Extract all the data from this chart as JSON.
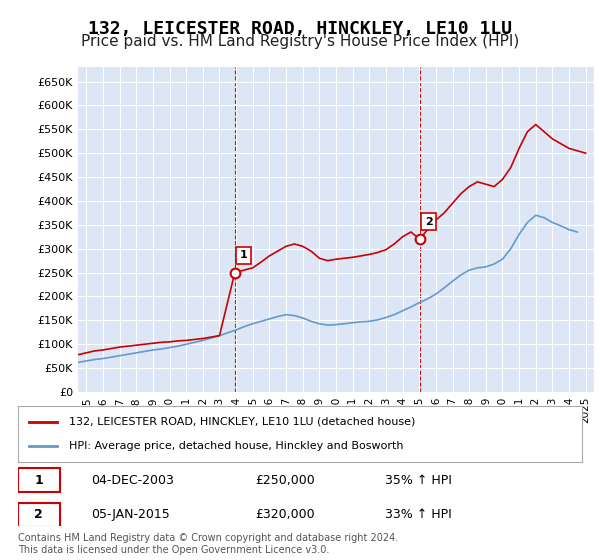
{
  "title": "132, LEICESTER ROAD, HINCKLEY, LE10 1LU",
  "subtitle": "Price paid vs. HM Land Registry's House Price Index (HPI)",
  "title_fontsize": 13,
  "subtitle_fontsize": 11,
  "background_color": "#ffffff",
  "plot_bg_color": "#dce6f5",
  "grid_color": "#ffffff",
  "red_line_color": "#cc0000",
  "blue_line_color": "#6699cc",
  "marker1_x": 2003.92,
  "marker1_y": 250000,
  "marker2_x": 2015.03,
  "marker2_y": 320000,
  "ylim": [
    0,
    680000
  ],
  "xlim": [
    1994.5,
    2025.5
  ],
  "yticks": [
    0,
    50000,
    100000,
    150000,
    200000,
    250000,
    300000,
    350000,
    400000,
    450000,
    500000,
    550000,
    600000,
    650000
  ],
  "ytick_labels": [
    "£0",
    "£50K",
    "£100K",
    "£150K",
    "£200K",
    "£250K",
    "£300K",
    "£350K",
    "£400K",
    "£450K",
    "£500K",
    "£550K",
    "£600K",
    "£650K"
  ],
  "xtick_years": [
    1995,
    1996,
    1997,
    1998,
    1999,
    2000,
    2001,
    2002,
    2003,
    2004,
    2005,
    2006,
    2007,
    2008,
    2009,
    2010,
    2011,
    2012,
    2013,
    2014,
    2015,
    2016,
    2017,
    2018,
    2019,
    2020,
    2021,
    2022,
    2023,
    2024,
    2025
  ],
  "legend_line1": "132, LEICESTER ROAD, HINCKLEY, LE10 1LU (detached house)",
  "legend_line2": "HPI: Average price, detached house, Hinckley and Bosworth",
  "table_rows": [
    {
      "num": "1",
      "date": "04-DEC-2003",
      "price": "£250,000",
      "change": "35% ↑ HPI"
    },
    {
      "num": "2",
      "date": "05-JAN-2015",
      "price": "£320,000",
      "change": "33% ↑ HPI"
    }
  ],
  "footnote": "Contains HM Land Registry data © Crown copyright and database right 2024.\nThis data is licensed under the Open Government Licence v3.0.",
  "red_x": [
    1994.5,
    1995.0,
    1995.5,
    1996.0,
    1996.5,
    1997.0,
    1997.5,
    1998.0,
    1998.5,
    1999.0,
    1999.5,
    2000.0,
    2000.5,
    2001.0,
    2001.5,
    2002.0,
    2002.5,
    2003.0,
    2003.92,
    2005.0,
    2005.5,
    2006.0,
    2006.5,
    2007.0,
    2007.5,
    2008.0,
    2008.5,
    2009.0,
    2009.5,
    2010.0,
    2010.5,
    2011.0,
    2011.5,
    2012.0,
    2012.5,
    2013.0,
    2013.5,
    2014.0,
    2014.5,
    2015.03,
    2015.5,
    2016.0,
    2016.5,
    2017.0,
    2017.5,
    2018.0,
    2018.5,
    2019.0,
    2019.5,
    2020.0,
    2020.5,
    2021.0,
    2021.5,
    2022.0,
    2022.5,
    2023.0,
    2023.5,
    2024.0,
    2024.5,
    2025.0
  ],
  "red_y": [
    78000,
    82000,
    86000,
    88000,
    91000,
    94000,
    96000,
    98000,
    100000,
    102000,
    104000,
    105000,
    107000,
    108000,
    110000,
    112000,
    115000,
    118000,
    250000,
    260000,
    272000,
    285000,
    295000,
    305000,
    310000,
    305000,
    295000,
    280000,
    275000,
    278000,
    280000,
    282000,
    285000,
    288000,
    292000,
    298000,
    310000,
    325000,
    335000,
    320000,
    340000,
    360000,
    375000,
    395000,
    415000,
    430000,
    440000,
    435000,
    430000,
    445000,
    470000,
    510000,
    545000,
    560000,
    545000,
    530000,
    520000,
    510000,
    505000,
    500000
  ],
  "blue_x": [
    1994.5,
    1995.0,
    1995.5,
    1996.0,
    1996.5,
    1997.0,
    1997.5,
    1998.0,
    1998.5,
    1999.0,
    1999.5,
    2000.0,
    2000.5,
    2001.0,
    2001.5,
    2002.0,
    2002.5,
    2003.0,
    2003.5,
    2004.0,
    2004.5,
    2005.0,
    2005.5,
    2006.0,
    2006.5,
    2007.0,
    2007.5,
    2008.0,
    2008.5,
    2009.0,
    2009.5,
    2010.0,
    2010.5,
    2011.0,
    2011.5,
    2012.0,
    2012.5,
    2013.0,
    2013.5,
    2014.0,
    2014.5,
    2015.0,
    2015.5,
    2016.0,
    2016.5,
    2017.0,
    2017.5,
    2018.0,
    2018.5,
    2019.0,
    2019.5,
    2020.0,
    2020.5,
    2021.0,
    2021.5,
    2022.0,
    2022.5,
    2023.0,
    2023.5,
    2024.0,
    2024.5
  ],
  "blue_y": [
    62000,
    65000,
    68000,
    70000,
    73000,
    76000,
    79000,
    82000,
    85000,
    88000,
    90000,
    93000,
    96000,
    100000,
    104000,
    108000,
    113000,
    118000,
    124000,
    130000,
    137000,
    143000,
    148000,
    153000,
    158000,
    162000,
    160000,
    155000,
    148000,
    143000,
    140000,
    141000,
    143000,
    145000,
    147000,
    148000,
    151000,
    156000,
    162000,
    170000,
    178000,
    187000,
    195000,
    205000,
    218000,
    232000,
    245000,
    255000,
    260000,
    262000,
    268000,
    278000,
    300000,
    330000,
    355000,
    370000,
    365000,
    355000,
    348000,
    340000,
    335000
  ]
}
